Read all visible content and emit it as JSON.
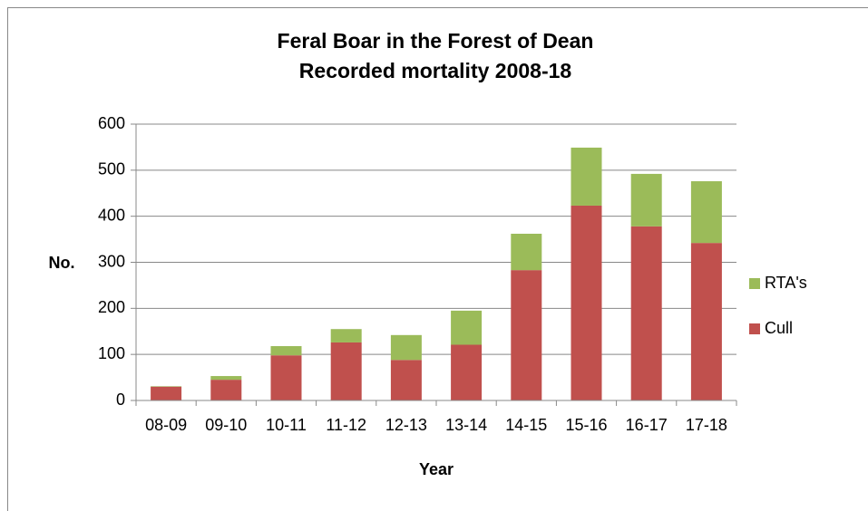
{
  "chart_data": {
    "type": "stacked_bar",
    "title": [
      "Feral Boar in the Forest of Dean",
      "Recorded mortality 2008-18"
    ],
    "y_label": "No.",
    "x_label": "Year",
    "categories": [
      "08-09",
      "09-10",
      "10-11",
      "11-12",
      "12-13",
      "13-14",
      "14-15",
      "15-16",
      "16-17",
      "17-18"
    ],
    "series": [
      {
        "name": "Cull",
        "color": "#c0504d",
        "values": [
          30,
          45,
          98,
          126,
          88,
          121,
          283,
          423,
          378,
          342
        ]
      },
      {
        "name": "RTA's",
        "color": "#9bbb59",
        "values": [
          1,
          8,
          20,
          29,
          54,
          74,
          79,
          126,
          114,
          134
        ]
      }
    ],
    "ylim": [
      0,
      600
    ],
    "yticks": [
      0,
      100,
      200,
      300,
      400,
      500,
      600
    ],
    "grid": true,
    "legend": "right"
  }
}
